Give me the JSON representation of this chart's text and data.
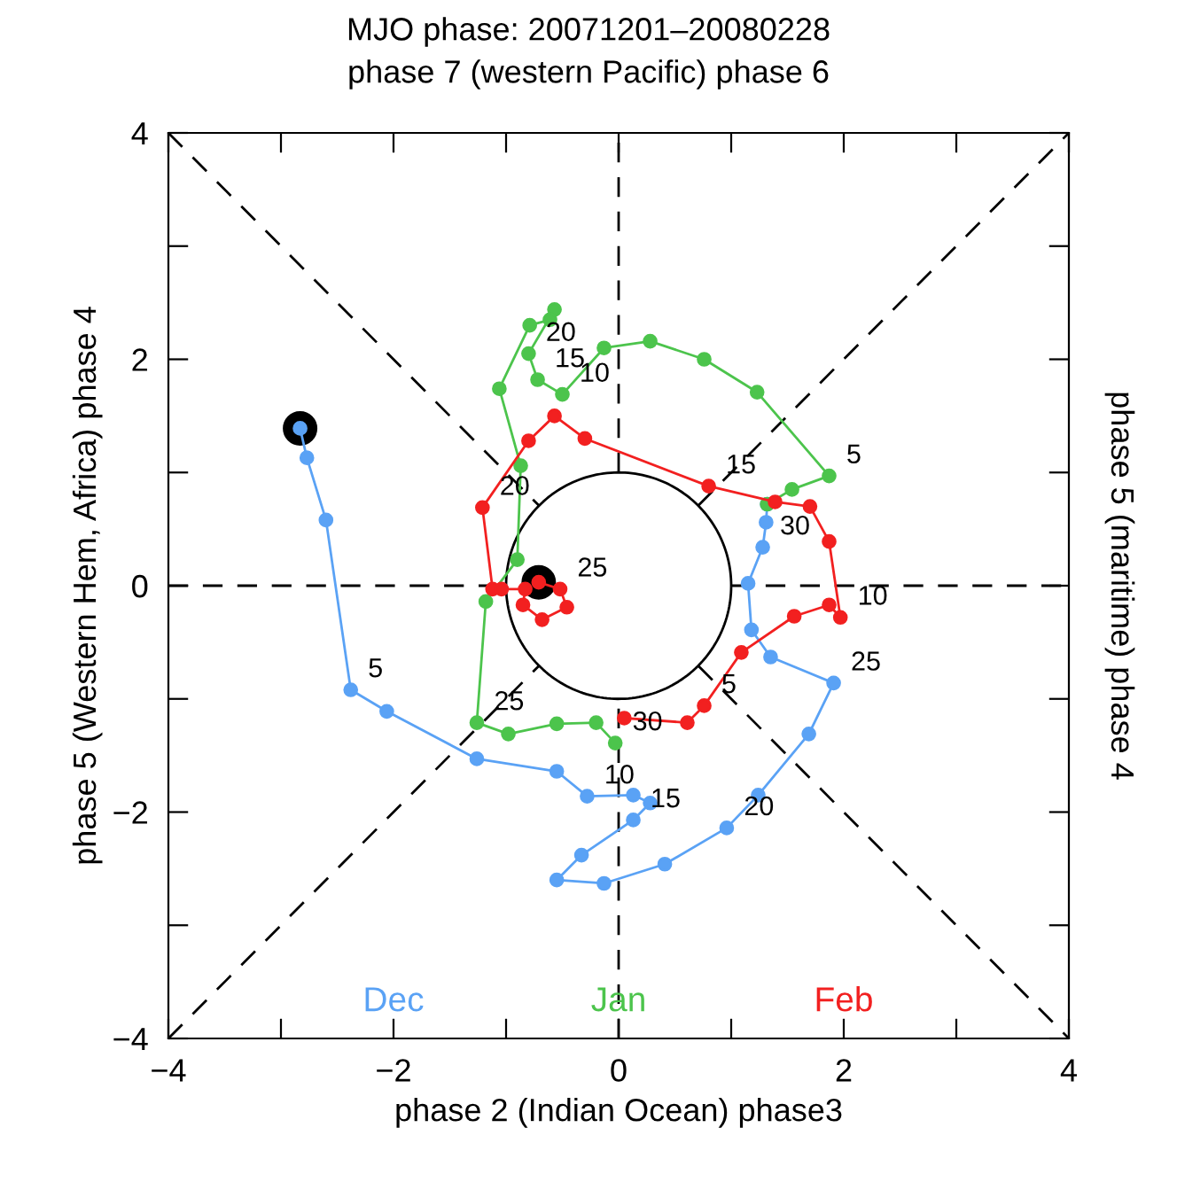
{
  "chart_data": {
    "type": "line",
    "title": "MJO phase: 20071201–20080228",
    "subtitle": "phase 7 (western Pacific) phase 6",
    "xlabel": "phase 2 (Indian Ocean) phase3",
    "ylabel": "phase 5 (Western Hem, Africa) phase 4",
    "y2label": "phase 5 (maritime) phase 4",
    "xlim": [
      -4,
      4
    ],
    "ylim": [
      -4,
      4
    ],
    "xticks": [
      -4,
      {
        "value": -3,
        "label": null
      },
      -2,
      {
        "value": -1,
        "label": null
      },
      0,
      {
        "value": 1,
        "label": null
      },
      2,
      {
        "value": 3,
        "label": null
      },
      4
    ],
    "yticks": [
      -4,
      {
        "value": -3,
        "label": null
      },
      -2,
      {
        "value": -1,
        "label": null
      },
      0,
      {
        "value": 1,
        "label": null
      },
      2,
      {
        "value": 3,
        "label": null
      },
      4
    ],
    "grid": false,
    "legend": "bottom",
    "series": [
      {
        "line_style": "dashed",
        "marker": "none",
        "color": "#000000",
        "x": [
          -4,
          -0.71
        ],
        "values": [
          -4,
          -0.71
        ]
      },
      {
        "line_style": "dashed",
        "marker": "none",
        "color": "#000000",
        "x": [
          0.71,
          4
        ],
        "values": [
          0.71,
          4
        ]
      },
      {
        "line_style": "dashed",
        "marker": "none",
        "color": "#000000",
        "x": [
          -4,
          -0.71
        ],
        "values": [
          4,
          0.71
        ]
      },
      {
        "line_style": "dashed",
        "marker": "none",
        "color": "#000000",
        "x": [
          0.71,
          4
        ],
        "values": [
          -0.71,
          -4
        ]
      },
      {
        "line_style": "dashed",
        "marker": "none",
        "color": "#000000",
        "x": [
          0,
          0
        ],
        "values": [
          -4,
          -1
        ]
      },
      {
        "line_style": "dashed",
        "marker": "none",
        "color": "#000000",
        "x": [
          0,
          0
        ],
        "values": [
          1,
          4
        ]
      },
      {
        "line_style": "dashed",
        "marker": "none",
        "color": "#000000",
        "x": [
          -4,
          -1
        ],
        "values": [
          0,
          0
        ]
      },
      {
        "line_style": "dashed",
        "marker": "none",
        "color": "#000000",
        "x": [
          1,
          4
        ],
        "values": [
          0,
          0
        ]
      },
      {
        "name": "Dec",
        "color": "#5aa2f5",
        "marker": "circle",
        "line_style": "solid",
        "x": [
          -2.83,
          -2.77,
          -2.6,
          -2.38,
          -2.06,
          -1.26,
          -0.55,
          -0.28,
          0.13,
          0.28,
          0.13,
          -0.33,
          -0.55,
          -0.13,
          0.41,
          0.96,
          1.24,
          1.69,
          1.91,
          1.35,
          1.18,
          1.15,
          1.28,
          1.31,
          1.32
        ],
        "values": [
          1.39,
          1.13,
          0.58,
          -0.92,
          -1.11,
          -1.53,
          -1.64,
          -1.86,
          -1.85,
          -1.92,
          -2.07,
          -2.38,
          -2.6,
          -2.63,
          -2.46,
          -2.14,
          -1.85,
          -1.31,
          -0.86,
          -0.63,
          -0.39,
          0.02,
          0.34,
          0.56,
          0.72
        ]
      },
      {
        "name": "Jan",
        "color": "#4cc44c",
        "marker": "circle",
        "line_style": "solid",
        "x": [
          1.32,
          1.54,
          1.87,
          1.23,
          0.76,
          0.28,
          -0.13,
          -0.5,
          -0.72,
          -0.8,
          -0.57,
          -0.61,
          -0.79,
          -1.06,
          -0.87,
          -0.9,
          -1.18,
          -1.26,
          -0.98,
          -0.55,
          -0.2,
          -0.03
        ],
        "values": [
          0.72,
          0.85,
          0.97,
          1.71,
          2.0,
          2.16,
          2.1,
          1.69,
          1.82,
          2.05,
          2.44,
          2.35,
          2.3,
          1.74,
          1.06,
          0.23,
          -0.14,
          -1.21,
          -1.31,
          -1.22,
          -1.21,
          -1.39
        ]
      },
      {
        "name": "Feb",
        "color": "#f22020",
        "marker": "circle",
        "line_style": "solid",
        "x": [
          0.05,
          0.61,
          0.76,
          1.09,
          1.56,
          1.87,
          1.97,
          1.87,
          1.7,
          1.39,
          0.8,
          -0.3,
          -0.57,
          -0.8,
          -1.21,
          -1.12,
          -1.04,
          -0.83,
          -0.85,
          -0.68,
          -0.46,
          -0.52,
          -0.71
        ],
        "values": [
          -1.17,
          -1.21,
          -1.06,
          -0.59,
          -0.27,
          -0.17,
          -0.28,
          0.39,
          0.7,
          0.74,
          0.88,
          1.3,
          1.5,
          1.28,
          0.69,
          -0.03,
          -0.03,
          -0.03,
          -0.17,
          -0.3,
          -0.19,
          -0.03,
          0.03
        ]
      },
      {
        "type": "scatter",
        "marker": "circle",
        "color": "#000000",
        "x": [
          -2.83
        ],
        "values": [
          1.39
        ]
      },
      {
        "type": "scatter",
        "marker": "circle",
        "color": "#000000",
        "x": [
          -0.71
        ],
        "values": [
          0.03
        ]
      }
    ],
    "annotations": [
      {
        "text": "5",
        "x": -2.38,
        "y": -0.92
      },
      {
        "text": "10",
        "x": -0.28,
        "y": -1.86
      },
      {
        "text": "15",
        "x": 0.13,
        "y": -2.07
      },
      {
        "text": "20",
        "x": 0.96,
        "y": -2.14
      },
      {
        "text": "25",
        "x": 1.91,
        "y": -0.86
      },
      {
        "text": "30",
        "x": 1.28,
        "y": 0.34
      },
      {
        "text": "5",
        "x": 1.87,
        "y": 0.97
      },
      {
        "text": "10",
        "x": -0.5,
        "y": 1.69
      },
      {
        "text": "15",
        "x": -0.72,
        "y": 1.82
      },
      {
        "text": "20",
        "x": -0.8,
        "y": 2.05
      },
      {
        "text": "25",
        "x": -1.26,
        "y": -1.21
      },
      {
        "text": "30",
        "x": -0.03,
        "y": -1.39
      },
      {
        "text": "5",
        "x": 0.76,
        "y": -1.06
      },
      {
        "text": "10",
        "x": 1.97,
        "y": -0.28
      },
      {
        "text": "15",
        "x": 0.8,
        "y": 0.88
      },
      {
        "text": "20",
        "x": -1.21,
        "y": 0.69
      },
      {
        "text": "25",
        "x": -0.52,
        "y": -0.03
      }
    ]
  }
}
